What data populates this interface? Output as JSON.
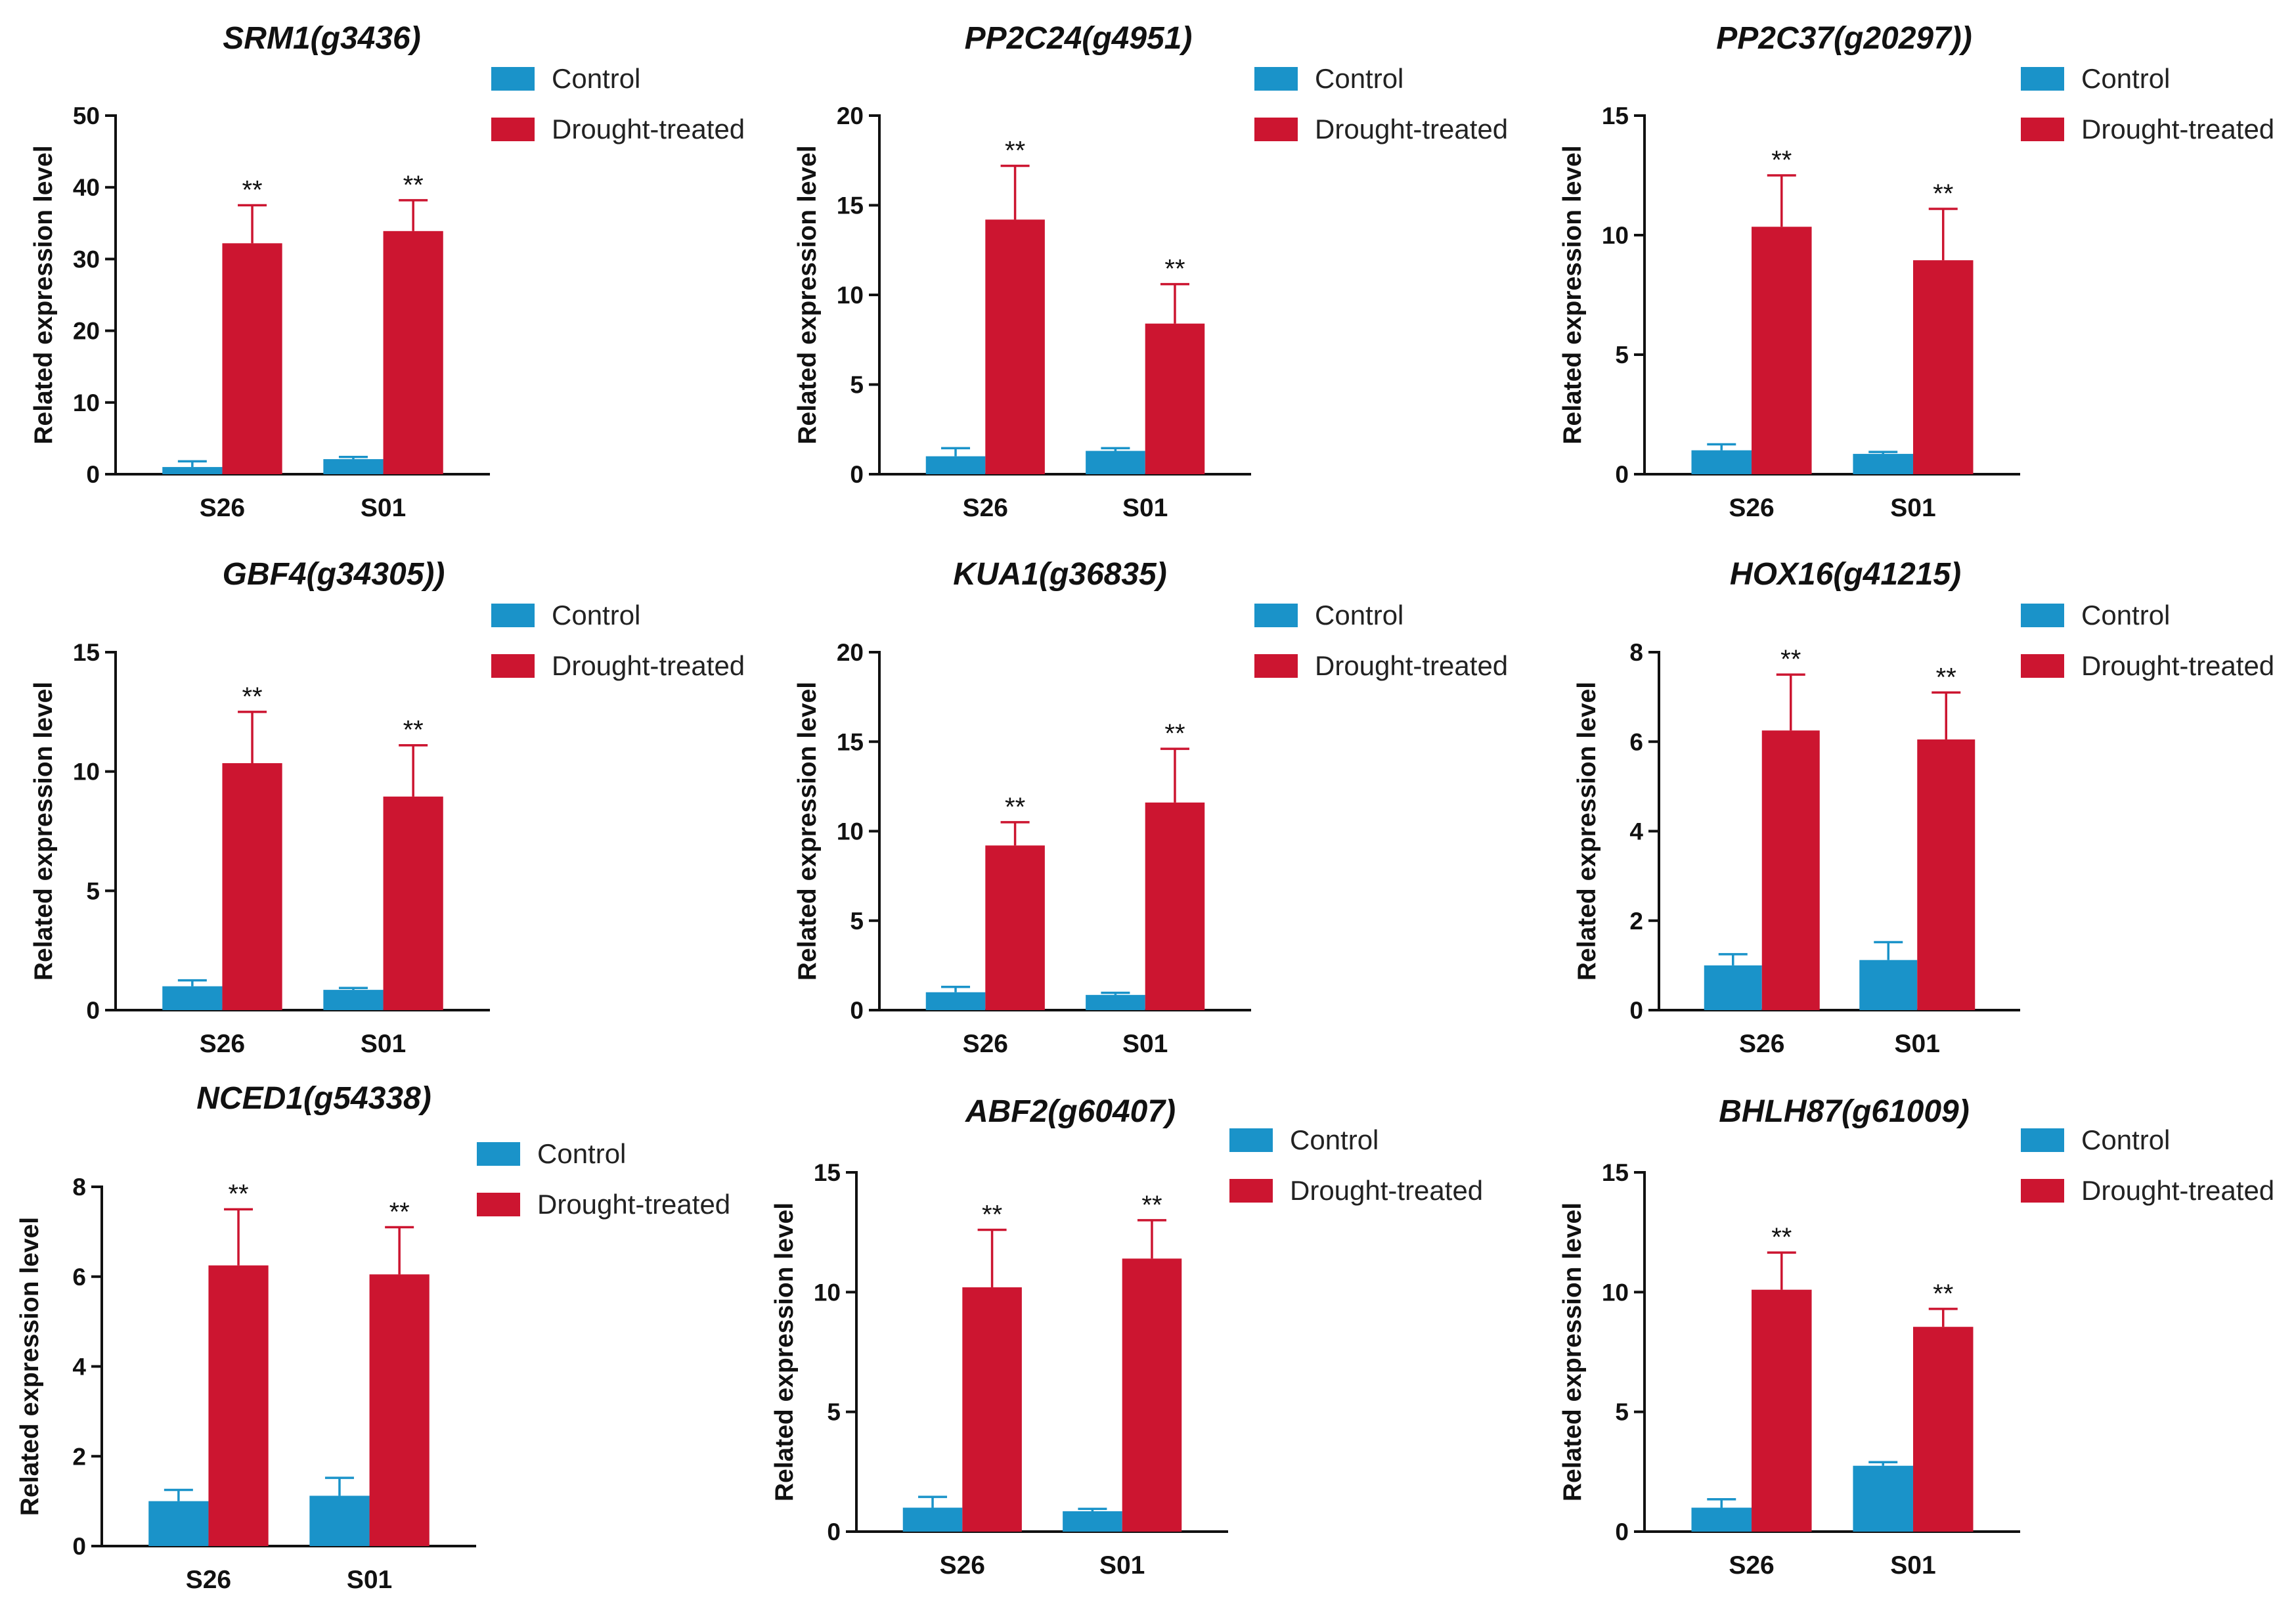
{
  "colors": {
    "control": "#1a93c9",
    "drought": "#cc1530",
    "axis": "#111111"
  },
  "chart_data": [
    {
      "type": "bar",
      "title": "SRM1(g3436)",
      "ylabel": "Related expression level",
      "categories": [
        "S26",
        "S01"
      ],
      "ylim": [
        0,
        50
      ],
      "yticks": [
        0,
        10,
        20,
        30,
        40,
        50
      ],
      "legend": [
        "Control",
        "Drought-treated"
      ],
      "legend_position": "top-right",
      "series": [
        {
          "name": "Control",
          "values": [
            1.0,
            2.1
          ],
          "errors": [
            0.8,
            0.3
          ]
        },
        {
          "name": "Drought-treated",
          "values": [
            32.2,
            33.9
          ],
          "errors": [
            5.3,
            4.3
          ]
        }
      ],
      "significance": [
        "**",
        "**"
      ]
    },
    {
      "type": "bar",
      "title": "PP2C24(g4951)",
      "ylabel": "Related expression level",
      "categories": [
        "S26",
        "S01"
      ],
      "ylim": [
        0,
        20
      ],
      "yticks": [
        0,
        5,
        10,
        15,
        20
      ],
      "legend": [
        "Control",
        "Drought-treated"
      ],
      "legend_position": "top-right",
      "series": [
        {
          "name": "Control",
          "values": [
            1.0,
            1.3
          ],
          "errors": [
            0.45,
            0.15
          ]
        },
        {
          "name": "Drought-treated",
          "values": [
            14.2,
            8.4
          ],
          "errors": [
            3.0,
            2.2
          ]
        }
      ],
      "significance": [
        "**",
        "**"
      ]
    },
    {
      "type": "bar",
      "title": "PP2C37(g20297))",
      "ylabel": "Related expression level",
      "categories": [
        "S26",
        "S01"
      ],
      "ylim": [
        0,
        15
      ],
      "yticks": [
        0,
        5,
        10,
        15
      ],
      "legend": [
        "Control",
        "Drought-treated"
      ],
      "legend_position": "top-right",
      "series": [
        {
          "name": "Control",
          "values": [
            1.0,
            0.85
          ],
          "errors": [
            0.25,
            0.08
          ]
        },
        {
          "name": "Drought-treated",
          "values": [
            10.35,
            8.95
          ],
          "errors": [
            2.15,
            2.15
          ]
        }
      ],
      "significance": [
        "**",
        "**"
      ]
    },
    {
      "type": "bar",
      "title": "GBF4(g34305))",
      "ylabel": "Related expression level",
      "categories": [
        "S26",
        "S01"
      ],
      "ylim": [
        0,
        15
      ],
      "yticks": [
        0,
        5,
        10,
        15
      ],
      "legend": [
        "Control",
        "Drought-treated"
      ],
      "legend_position": "top-right",
      "series": [
        {
          "name": "Control",
          "values": [
            1.0,
            0.85
          ],
          "errors": [
            0.25,
            0.08
          ]
        },
        {
          "name": "Drought-treated",
          "values": [
            10.35,
            8.95
          ],
          "errors": [
            2.15,
            2.15
          ]
        }
      ],
      "significance": [
        "**",
        "**"
      ]
    },
    {
      "type": "bar",
      "title": "KUA1(g36835)",
      "ylabel": "Related expression level",
      "categories": [
        "S26",
        "S01"
      ],
      "ylim": [
        0,
        20
      ],
      "yticks": [
        0,
        5,
        10,
        15,
        20
      ],
      "legend": [
        "Control",
        "Drought-treated"
      ],
      "legend_position": "top-right",
      "series": [
        {
          "name": "Control",
          "values": [
            1.0,
            0.85
          ],
          "errors": [
            0.3,
            0.12
          ]
        },
        {
          "name": "Drought-treated",
          "values": [
            9.2,
            11.6
          ],
          "errors": [
            1.3,
            3.0
          ]
        }
      ],
      "significance": [
        "**",
        "**"
      ]
    },
    {
      "type": "bar",
      "title": "HOX16(g41215)",
      "ylabel": "Related expression level",
      "categories": [
        "S26",
        "S01"
      ],
      "ylim": [
        0,
        8
      ],
      "yticks": [
        0,
        2,
        4,
        6,
        8
      ],
      "legend": [
        "Control",
        "Drought-treated"
      ],
      "legend_position": "top-right",
      "series": [
        {
          "name": "Control",
          "values": [
            1.0,
            1.12
          ],
          "errors": [
            0.25,
            0.4
          ]
        },
        {
          "name": "Drought-treated",
          "values": [
            6.25,
            6.05
          ],
          "errors": [
            1.25,
            1.05
          ]
        }
      ],
      "significance": [
        "**",
        "**"
      ]
    },
    {
      "type": "bar",
      "title": "NCED1(g54338)",
      "ylabel": "Related expression level",
      "categories": [
        "S26",
        "S01"
      ],
      "ylim": [
        0,
        8
      ],
      "yticks": [
        0,
        2,
        4,
        6,
        8
      ],
      "legend": [
        "Control",
        "Drought-treated"
      ],
      "legend_position": "top-right",
      "series": [
        {
          "name": "Control",
          "values": [
            1.0,
            1.12
          ],
          "errors": [
            0.25,
            0.4
          ]
        },
        {
          "name": "Drought-treated",
          "values": [
            6.25,
            6.05
          ],
          "errors": [
            1.25,
            1.05
          ]
        }
      ],
      "significance": [
        "**",
        "**"
      ]
    },
    {
      "type": "bar",
      "title": "ABF2(g60407)",
      "ylabel": "Related expression level",
      "categories": [
        "S26",
        "S01"
      ],
      "ylim": [
        0,
        15
      ],
      "yticks": [
        0,
        5,
        10,
        15
      ],
      "legend": [
        "Control",
        "Drought-treated"
      ],
      "legend_position": "top-right",
      "series": [
        {
          "name": "Control",
          "values": [
            1.0,
            0.85
          ],
          "errors": [
            0.45,
            0.1
          ]
        },
        {
          "name": "Drought-treated",
          "values": [
            10.2,
            11.4
          ],
          "errors": [
            2.4,
            1.6
          ]
        }
      ],
      "significance": [
        "**",
        "**"
      ]
    },
    {
      "type": "bar",
      "title": "BHLH87(g61009)",
      "ylabel": "Related expression level",
      "categories": [
        "S26",
        "S01"
      ],
      "ylim": [
        0,
        15
      ],
      "yticks": [
        0,
        5,
        10,
        15
      ],
      "legend": [
        "Control",
        "Drought-treated"
      ],
      "legend_position": "top-right",
      "series": [
        {
          "name": "Control",
          "values": [
            1.0,
            2.75
          ],
          "errors": [
            0.35,
            0.15
          ]
        },
        {
          "name": "Drought-treated",
          "values": [
            10.1,
            8.55
          ],
          "errors": [
            1.55,
            0.75
          ]
        }
      ],
      "significance": [
        "**",
        "**"
      ]
    }
  ]
}
